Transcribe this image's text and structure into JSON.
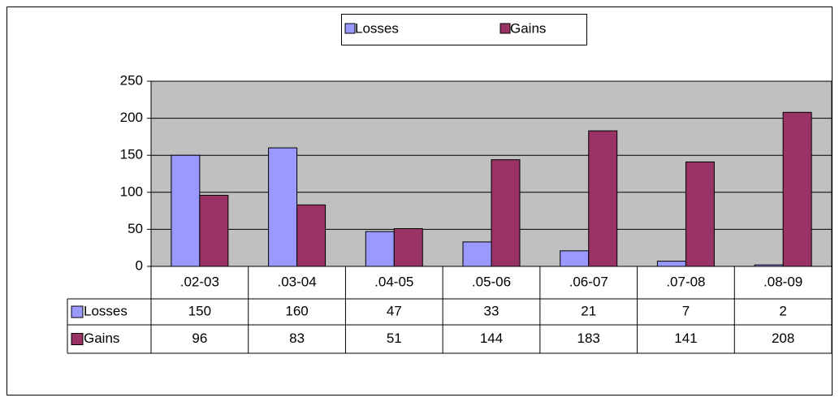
{
  "chart_data": {
    "type": "bar",
    "categories": [
      ".02-03",
      ".03-04",
      ".04-05",
      ".05-06",
      ".06-07",
      ".07-08",
      ".08-09"
    ],
    "series": [
      {
        "name": "Losses",
        "color": "#9999ff",
        "values": [
          150,
          160,
          47,
          33,
          21,
          7,
          2
        ]
      },
      {
        "name": "Gains",
        "color": "#993366",
        "values": [
          96,
          83,
          51,
          144,
          183,
          141,
          208
        ]
      }
    ],
    "ylim": [
      0,
      250
    ],
    "yticks": [
      0,
      50,
      100,
      150,
      200,
      250
    ],
    "grid": true,
    "legend": "top"
  }
}
